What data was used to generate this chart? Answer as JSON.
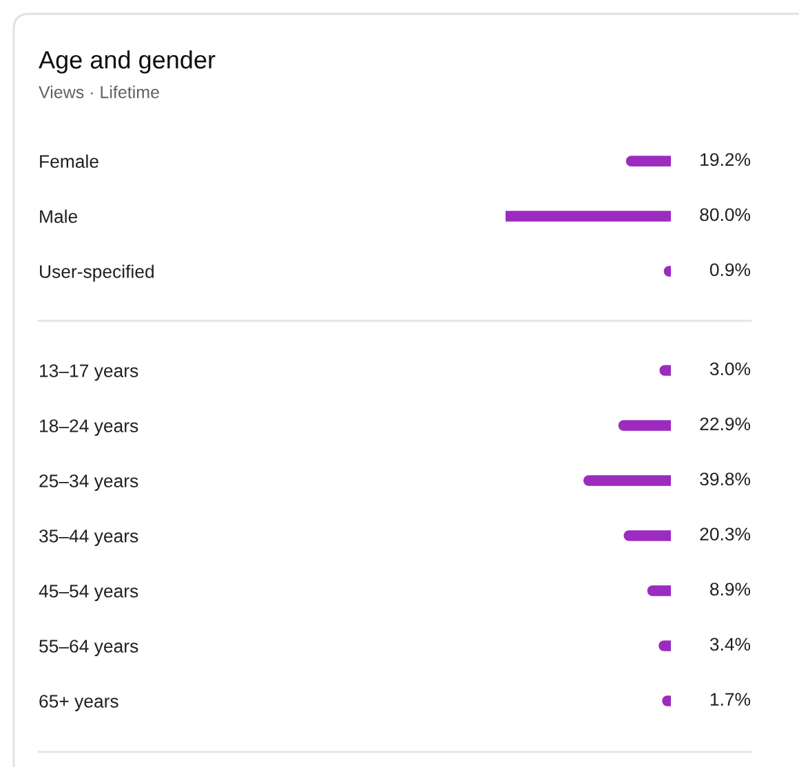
{
  "chart_data": [
    {
      "type": "bar",
      "title": "Age and gender",
      "subtitle": "Views · Lifetime",
      "orientation": "horizontal",
      "tick_labels": "y",
      "categories": [
        "Female",
        "Male",
        "User-specified"
      ],
      "values": [
        19.2,
        80.0,
        0.9
      ],
      "value_labels": [
        "19.2%",
        "80.0%",
        "0.9%"
      ],
      "color": "#9c2bbf"
    },
    {
      "type": "bar",
      "orientation": "horizontal",
      "tick_labels": "y",
      "categories": [
        "13–17 years",
        "18–24 years",
        "25–34 years",
        "35–44 years",
        "45–54 years",
        "55–64 years",
        "65+ years"
      ],
      "values": [
        3.0,
        22.9,
        39.8,
        20.3,
        8.9,
        3.4,
        1.7
      ],
      "value_labels": [
        "3.0%",
        "22.9%",
        "39.8%",
        "20.3%",
        "8.9%",
        "3.4%",
        "1.7%"
      ],
      "color": "#9c2bbf"
    }
  ]
}
